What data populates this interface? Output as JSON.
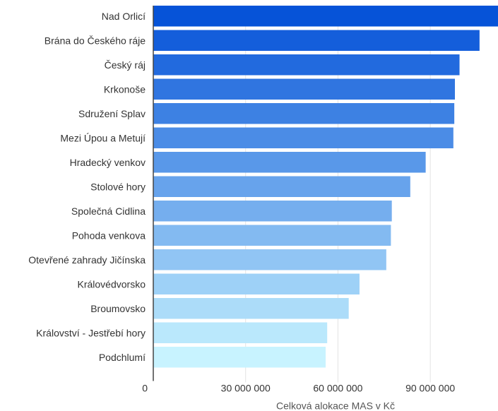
{
  "chart_data": {
    "type": "bar",
    "orientation": "horizontal",
    "title": "",
    "xlabel": "Celková alokace MAS v Kč",
    "ylabel": "",
    "categories": [
      "Nad Orlicí",
      "Brána do Českého ráje",
      "Český ráj",
      "Krkonoše",
      "Sdružení Splav",
      "Mezi Úpou a Metují",
      "Hradecký venkov",
      "Stolové hory",
      "Společná Cidlina",
      "Pohoda venkova",
      "Otevřené zahrady Jičínska",
      "Královédvorsko",
      "Broumovsko",
      "Království - Jestřebí hory",
      "Podchlumí"
    ],
    "values": [
      112000000,
      106000000,
      99500000,
      98000000,
      97800000,
      97500000,
      88500000,
      83500000,
      77500000,
      77200000,
      75700000,
      67000000,
      63500000,
      56500000,
      56000000
    ],
    "xlim": [
      0,
      112000000
    ],
    "xticks": [
      0,
      30000000,
      60000000,
      90000000
    ],
    "xtick_labels": [
      "0",
      "30 000 000",
      "60 000 000",
      "90 000 000"
    ],
    "grid": true,
    "legend": "none",
    "color_gradient": [
      "#0653d8",
      "#c8f3ff"
    ]
  }
}
